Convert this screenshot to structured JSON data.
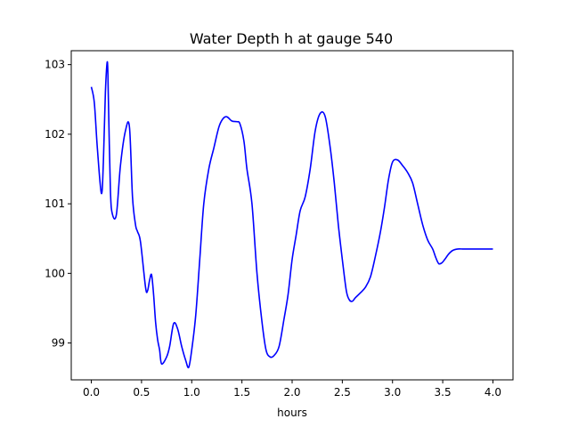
{
  "chart_data": {
    "type": "line",
    "title": "Water Depth h at gauge 540",
    "xlabel": "hours",
    "ylabel": "",
    "xlim": [
      -0.2,
      4.2
    ],
    "ylim": [
      98.47,
      103.2
    ],
    "xticks": [
      0.0,
      0.5,
      1.0,
      1.5,
      2.0,
      2.5,
      3.0,
      3.5,
      4.0
    ],
    "xtick_labels": [
      "0.0",
      "0.5",
      "1.0",
      "1.5",
      "2.0",
      "2.5",
      "3.0",
      "3.5",
      "4.0"
    ],
    "yticks": [
      99,
      100,
      101,
      102,
      103
    ],
    "ytick_labels": [
      "99",
      "100",
      "101",
      "102",
      "103"
    ],
    "grid": false,
    "series": [
      {
        "color": "#0000ff",
        "x": [
          0.0,
          0.03,
          0.06,
          0.1,
          0.12,
          0.14,
          0.16,
          0.17,
          0.19,
          0.21,
          0.25,
          0.29,
          0.34,
          0.38,
          0.41,
          0.44,
          0.46,
          0.49,
          0.54,
          0.56,
          0.58,
          0.6,
          0.62,
          0.64,
          0.66,
          0.68,
          0.7,
          0.75,
          0.78,
          0.82,
          0.86,
          0.9,
          0.94,
          0.97,
          1.0,
          1.04,
          1.08,
          1.12,
          1.17,
          1.22,
          1.27,
          1.31,
          1.35,
          1.4,
          1.45,
          1.48,
          1.52,
          1.55,
          1.6,
          1.65,
          1.7,
          1.74,
          1.78,
          1.82,
          1.87,
          1.92,
          1.96,
          2.0,
          2.04,
          2.08,
          2.13,
          2.18,
          2.23,
          2.28,
          2.33,
          2.38,
          2.42,
          2.46,
          2.5,
          2.54,
          2.57,
          2.6,
          2.63,
          2.68,
          2.73,
          2.78,
          2.83,
          2.88,
          2.92,
          2.96,
          3.0,
          3.05,
          3.1,
          3.15,
          3.2,
          3.25,
          3.3,
          3.35,
          3.4,
          3.43,
          3.46,
          3.49,
          3.52,
          3.56,
          3.6,
          3.65,
          3.7,
          3.75,
          3.8,
          3.84,
          3.88,
          3.92,
          3.96,
          4.0
        ],
        "y": [
          102.68,
          102.45,
          101.8,
          101.15,
          101.6,
          102.6,
          103.04,
          102.5,
          101.2,
          100.85,
          100.85,
          101.55,
          102.05,
          102.1,
          101.1,
          100.7,
          100.6,
          100.45,
          99.8,
          99.75,
          99.9,
          99.98,
          99.7,
          99.3,
          99.05,
          98.9,
          98.7,
          98.8,
          98.95,
          99.28,
          99.2,
          98.95,
          98.75,
          98.65,
          98.9,
          99.4,
          100.2,
          101.0,
          101.5,
          101.8,
          102.1,
          102.22,
          102.25,
          102.19,
          102.18,
          102.15,
          101.9,
          101.5,
          101.0,
          100.0,
          99.3,
          98.9,
          98.8,
          98.82,
          98.95,
          99.35,
          99.7,
          100.2,
          100.55,
          100.9,
          101.1,
          101.5,
          102.05,
          102.3,
          102.25,
          101.8,
          101.3,
          100.7,
          100.2,
          99.75,
          99.62,
          99.6,
          99.65,
          99.72,
          99.8,
          99.95,
          100.25,
          100.6,
          100.95,
          101.35,
          101.6,
          101.63,
          101.55,
          101.45,
          101.3,
          101.0,
          100.7,
          100.48,
          100.35,
          100.23,
          100.14,
          100.15,
          100.2,
          100.28,
          100.33,
          100.35,
          100.35,
          100.35,
          100.35,
          100.35,
          100.35,
          100.35,
          100.35,
          100.35
        ]
      }
    ]
  }
}
